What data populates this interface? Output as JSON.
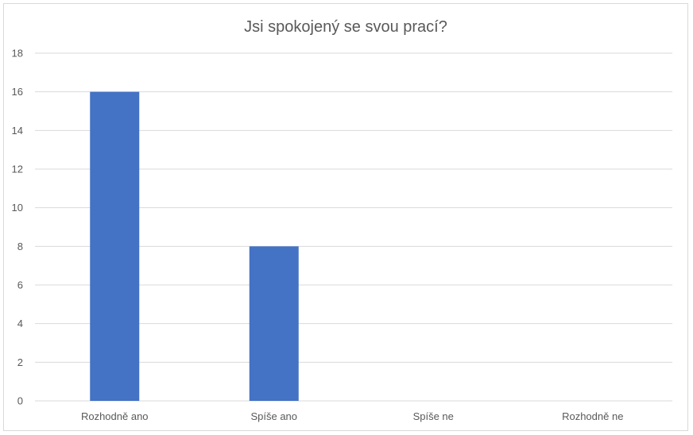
{
  "chart_data": {
    "type": "bar",
    "title": "Jsi spokojený se svou prací?",
    "categories": [
      "Rozhodně ano",
      "Spíše ano",
      "Spíše ne",
      "Rozhodně ne"
    ],
    "values": [
      16,
      8,
      0,
      0
    ],
    "xlabel": "",
    "ylabel": "",
    "ylim": [
      0,
      18
    ],
    "yticks": [
      0,
      2,
      4,
      6,
      8,
      10,
      12,
      14,
      16,
      18
    ],
    "grid": true,
    "legend": "none",
    "bar_color": "#4472C4",
    "grid_color": "#d9d9d9",
    "text_color": "#595959"
  }
}
